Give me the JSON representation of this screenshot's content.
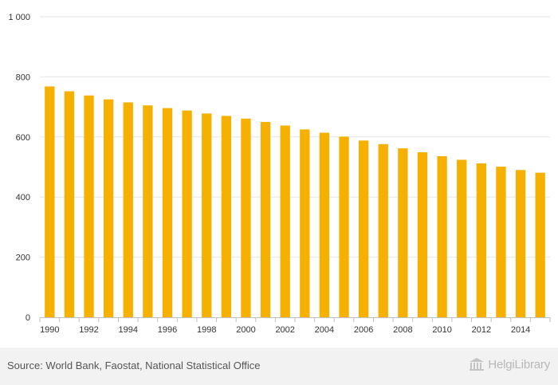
{
  "colors": {
    "bar": "#f5b000",
    "grid": "#e6e6e6",
    "axis": "#c0c0c0",
    "footer_bg": "#f2f2f2"
  },
  "footer": {
    "source": "Source: World Bank, Faostat, National Statistical Office",
    "brand": "HelgiLibrary",
    "brand_icon": "library-building-icon"
  },
  "chart_data": {
    "type": "bar",
    "categories": [
      "1990",
      "1991",
      "1992",
      "1993",
      "1994",
      "1995",
      "1996",
      "1997",
      "1998",
      "1999",
      "2000",
      "2001",
      "2002",
      "2003",
      "2004",
      "2005",
      "2006",
      "2007",
      "2008",
      "2009",
      "2010",
      "2011",
      "2012",
      "2013",
      "2014",
      "2015"
    ],
    "values": [
      768,
      752,
      738,
      725,
      715,
      705,
      696,
      688,
      678,
      670,
      661,
      650,
      638,
      625,
      614,
      601,
      588,
      576,
      562,
      549,
      536,
      524,
      512,
      501,
      490,
      481
    ],
    "x_tick_labels": [
      "1990",
      "1992",
      "1994",
      "1996",
      "1998",
      "2000",
      "2002",
      "2004",
      "2006",
      "2008",
      "2010",
      "2012",
      "2014"
    ],
    "y_ticks": [
      0,
      200,
      400,
      600,
      800,
      1000
    ],
    "y_tick_labels": [
      "0",
      "200",
      "400",
      "600",
      "800",
      "1 000"
    ],
    "ylim": [
      0,
      1000
    ],
    "grid": true,
    "legend": "none",
    "title": "",
    "xlabel": "",
    "ylabel": ""
  }
}
